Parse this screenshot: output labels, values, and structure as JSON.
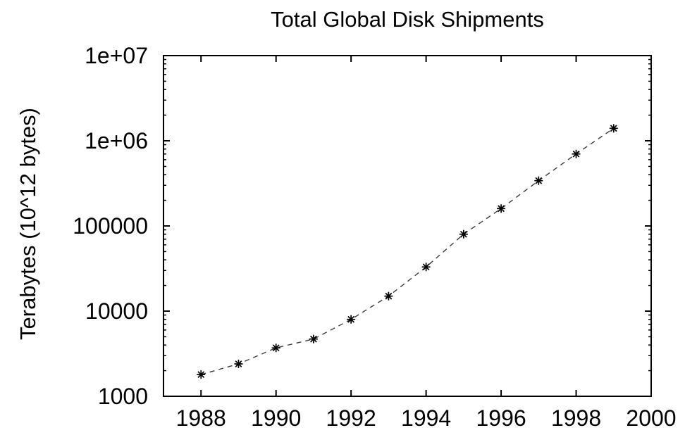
{
  "figure": {
    "title": "Total Global Disk Shipments",
    "y_axis_title": "Terabytes (10^12 bytes)"
  },
  "chart_data": {
    "type": "line",
    "title": "Total Global Disk Shipments",
    "xlabel": "",
    "ylabel": "Terabytes (10^12 bytes)",
    "x": [
      1988,
      1989,
      1990,
      1991,
      1992,
      1993,
      1994,
      1995,
      1996,
      1997,
      1998,
      1999
    ],
    "values": [
      1800,
      2400,
      3700,
      4700,
      8000,
      15000,
      33000,
      80000,
      160000,
      340000,
      700000,
      1400000
    ],
    "xlim": [
      1987,
      2000
    ],
    "ylim": [
      1000,
      10000000
    ],
    "y_scale": "log",
    "x_ticks": [
      {
        "value": 1988,
        "label": "1988"
      },
      {
        "value": 1990,
        "label": "1990"
      },
      {
        "value": 1992,
        "label": "1992"
      },
      {
        "value": 1994,
        "label": "1994"
      },
      {
        "value": 1996,
        "label": "1996"
      },
      {
        "value": 1998,
        "label": "1998"
      },
      {
        "value": 2000,
        "label": "2000"
      }
    ],
    "y_ticks": [
      {
        "value": 1000,
        "label": "1000"
      },
      {
        "value": 10000,
        "label": "10000"
      },
      {
        "value": 100000,
        "label": "100000"
      },
      {
        "value": 1000000,
        "label": "1e+06"
      },
      {
        "value": 10000000,
        "label": "1e+07"
      }
    ],
    "y_minor_multiples": [
      2,
      3,
      4,
      5,
      6,
      7,
      8,
      9
    ],
    "marker": "asterisk",
    "line_style": "dashed",
    "grid": false,
    "legend": "none",
    "colors": {
      "background": "#ffffff",
      "axes": "#000000",
      "line": "#3a3a3a",
      "marker": "#000000",
      "text": "#000000"
    }
  }
}
